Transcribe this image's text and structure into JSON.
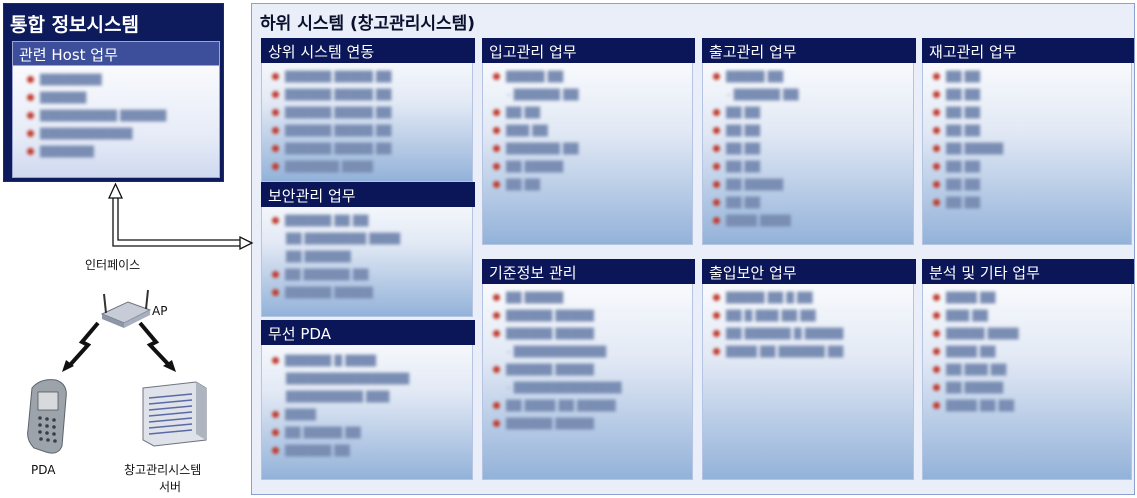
{
  "integrated": {
    "title": "통합 정보시스템",
    "panel_label": "관련 Host 업무"
  },
  "subsystem": {
    "title": "하위 시스템 (창고관리시스템)",
    "panels": {
      "upper": "상위 시스템 연동",
      "security": "보안관리 업무",
      "wireless": "무선 PDA",
      "inbound": "입고관리 업무",
      "master": "기준정보 관리",
      "outbound": "출고관리 업무",
      "access": "출입보안 업무",
      "inventory": "재고관리 업무",
      "analysis": "분석 및 기타 업무"
    }
  },
  "labels": {
    "interface": "인터페이스",
    "ap": "AP",
    "pda": "PDA",
    "server_line1": "창고관리시스템",
    "server_line2": "서버"
  },
  "colors": {
    "header_navy": "#0b1658",
    "bullet_red": "#c0392b",
    "panel_gradient_bottom": "#93b2d9"
  }
}
